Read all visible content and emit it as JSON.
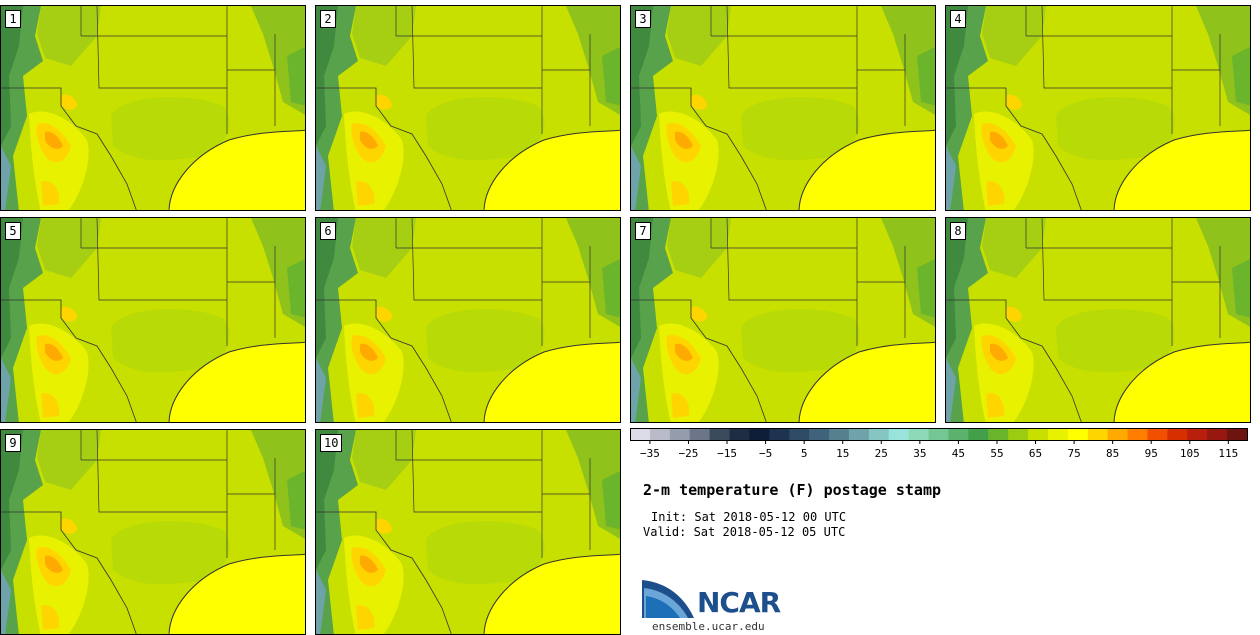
{
  "chart_data": {
    "type": "heatmap",
    "title": "2-m temperature (F) postage stamp",
    "init": "Init: Sat 2018-05-12 00 UTC",
    "valid": "Valid: Sat 2018-05-12 05 UTC",
    "panels": [
      "1",
      "2",
      "3",
      "4",
      "5",
      "6",
      "7",
      "8",
      "9",
      "10"
    ],
    "colorbar": {
      "min": -35,
      "max": 120,
      "step": 5,
      "tick_labels": [
        "−35",
        "−25",
        "−15",
        "−5",
        "5",
        "15",
        "25",
        "35",
        "45",
        "55",
        "65",
        "75",
        "85",
        "95",
        "105",
        "115"
      ],
      "tick_values": [
        -35,
        -25,
        -15,
        -5,
        5,
        15,
        25,
        35,
        45,
        55,
        65,
        75,
        85,
        95,
        105,
        115
      ],
      "colors": [
        "#dcdce8",
        "#b9bcc8",
        "#959cab",
        "#6b7689",
        "#3c4a5e",
        "#1f2c44",
        "#0f1e38",
        "#1d3350",
        "#2f4a65",
        "#40627a",
        "#57808f",
        "#6ea3a9",
        "#86c6c2",
        "#98e3da",
        "#8ed9b8",
        "#74c793",
        "#5ab26d",
        "#43a04a",
        "#6bb52d",
        "#9ccc12",
        "#c8e000",
        "#e8f200",
        "#ffff00",
        "#ffd500",
        "#ffaa00",
        "#ff7e00",
        "#f05000",
        "#d63000",
        "#b81f0c",
        "#961610",
        "#6e1410"
      ]
    }
  },
  "branding": {
    "logo_text": "NCAR",
    "url": "ensemble.ucar.edu"
  }
}
